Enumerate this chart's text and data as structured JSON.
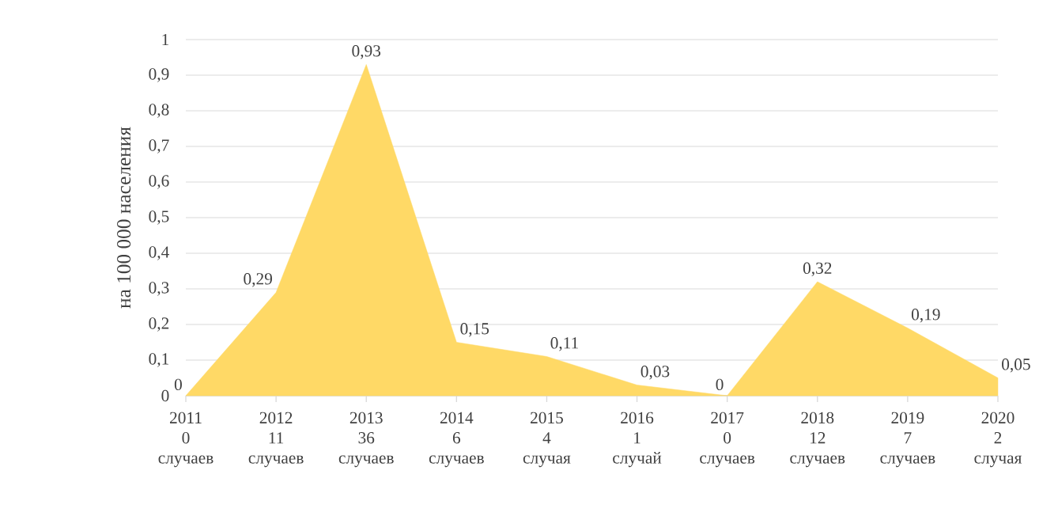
{
  "chart_data": {
    "type": "area",
    "ylabel": "на 100 000 населения",
    "categories": [
      "2011 0 случаев",
      "2012 11 случаев",
      "2013 36 случаев",
      "2014 6 случаев",
      "2015 4 случая",
      "2016 1 случай",
      "2017 0 случаев",
      "2018 12 случаев",
      "2019 7 случаев",
      "2020 2 случая"
    ],
    "values": [
      0,
      0.29,
      0.93,
      0.15,
      0.11,
      0.03,
      0,
      0.32,
      0.19,
      0.05
    ],
    "value_labels": [
      "0",
      "0,29",
      "0,93",
      "0,15",
      "0,11",
      "0,03",
      "0",
      "0,32",
      "0,19",
      "0,05"
    ],
    "color": "#ffd966",
    "ylim": [
      0,
      1
    ],
    "yticks": [
      0,
      {
        "value": 0.1,
        "label": "0,1"
      },
      {
        "value": 0.2,
        "label": "0,2"
      },
      {
        "value": 0.3,
        "label": "0,3"
      },
      {
        "value": 0.4,
        "label": "0,4"
      },
      {
        "value": 0.5,
        "label": "0,5"
      },
      {
        "value": 0.6,
        "label": "0,6"
      },
      {
        "value": 0.7,
        "label": "0,7"
      },
      {
        "value": 0.8,
        "label": "0,8"
      },
      {
        "value": 0.9,
        "label": "0,9"
      },
      1
    ],
    "grid": "y"
  }
}
